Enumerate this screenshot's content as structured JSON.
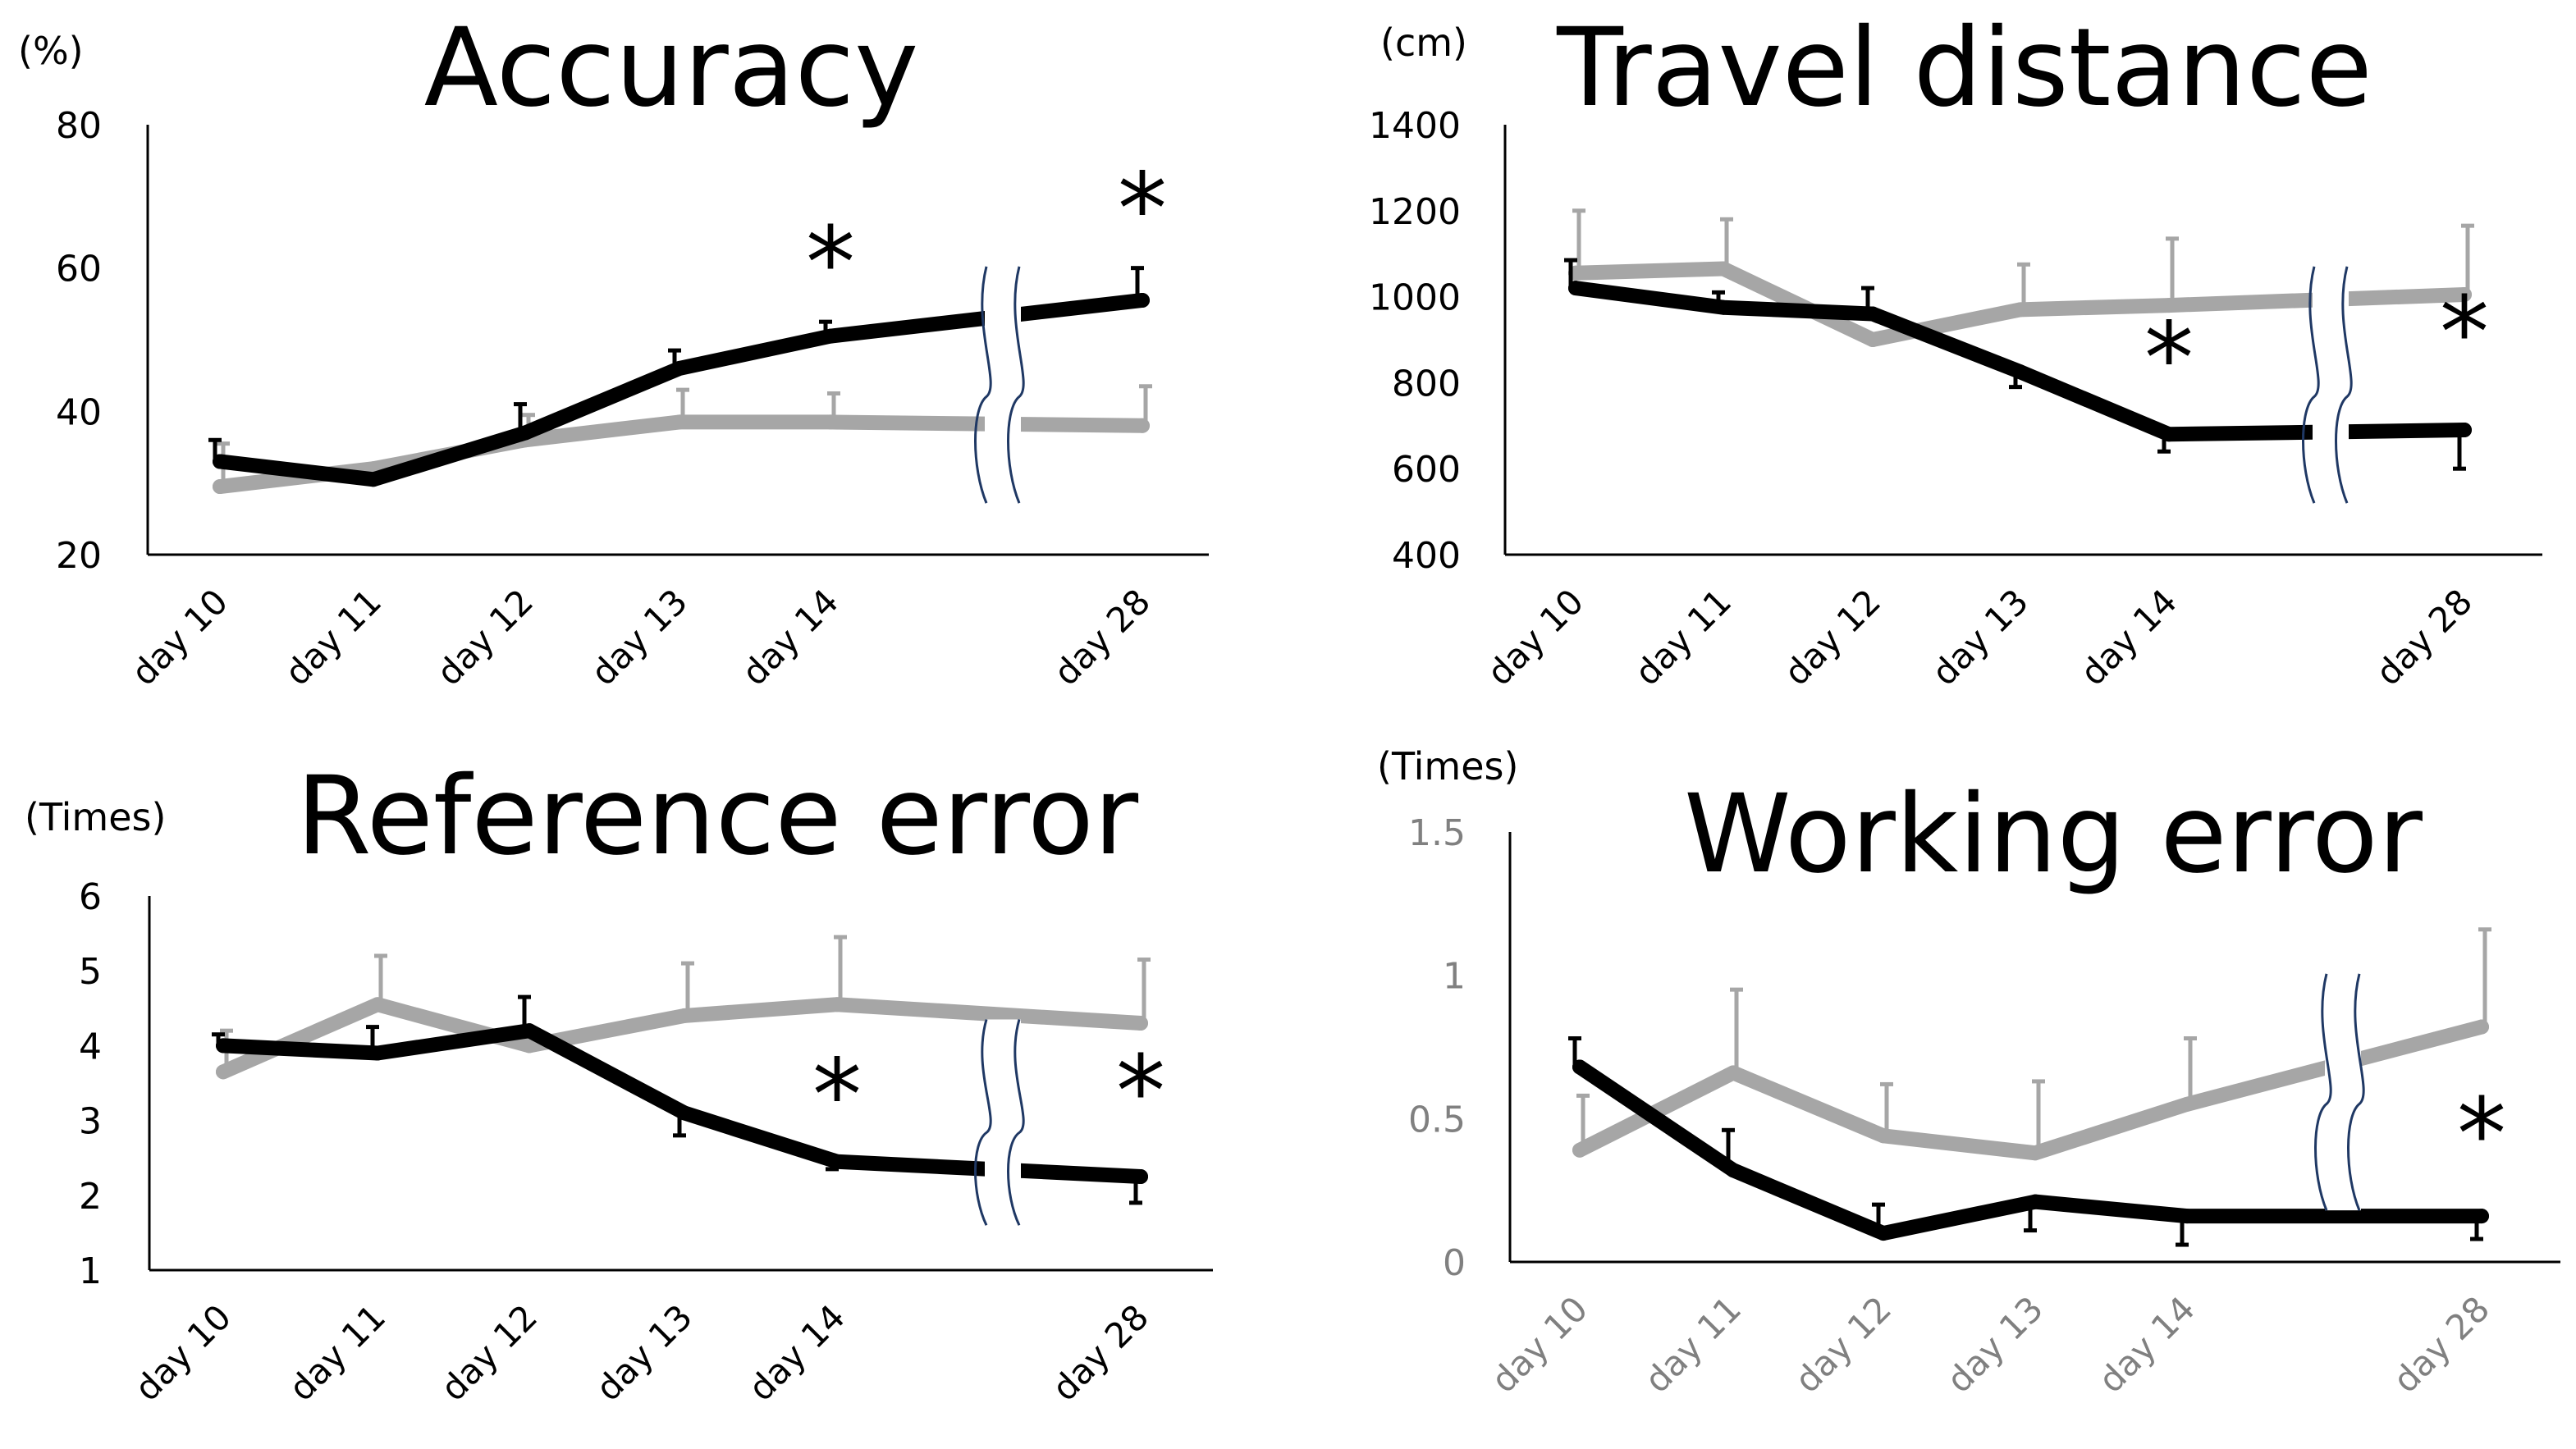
{
  "colors": {
    "series_dark": "#000000",
    "series_light": "#a6a6a6",
    "axis": "#000000",
    "break_mark": "#1f3864"
  },
  "chart_data": [
    {
      "type": "line",
      "title": "Accuracy",
      "unit": "(%)",
      "categories": [
        "day 10",
        "day 11",
        "day 12",
        "day 13",
        "day 14",
        "day 28"
      ],
      "yticks": [
        "20",
        "40",
        "60",
        "80"
      ],
      "ylim": [
        20,
        80
      ],
      "axis_break_between": [
        "day 14",
        "day 28"
      ],
      "series": [
        {
          "color": "#000000",
          "values": [
            33,
            30.5,
            37,
            46,
            50.5,
            55.5
          ],
          "errors": [
            3,
            0,
            4,
            2.5,
            2,
            4.5
          ]
        },
        {
          "color": "#a6a6a6",
          "values": [
            29.5,
            32,
            36,
            38.5,
            38.5,
            38
          ],
          "errors": [
            6,
            0,
            3.5,
            4.5,
            4,
            5.5
          ]
        }
      ],
      "significance": [
        {
          "category": "day 14",
          "label": "*"
        },
        {
          "category": "day 28",
          "label": "*"
        }
      ]
    },
    {
      "type": "line",
      "title": "Travel distance",
      "unit": "(cm)",
      "categories": [
        "day 10",
        "day 11",
        "day 12",
        "day 13",
        "day 14",
        "day 28"
      ],
      "yticks": [
        "400",
        "600",
        "800",
        "1000",
        "1200",
        "1400"
      ],
      "ylim": [
        400,
        1400
      ],
      "axis_break_between": [
        "day 14",
        "day 28"
      ],
      "series": [
        {
          "color": "#000000",
          "values": [
            1020,
            975,
            960,
            825,
            680,
            690
          ],
          "errors": [
            65,
            35,
            60,
            35,
            40,
            90
          ]
        },
        {
          "color": "#a6a6a6",
          "values": [
            1055,
            1065,
            900,
            970,
            980,
            1005
          ],
          "errors": [
            145,
            115,
            0,
            105,
            155,
            160
          ]
        }
      ],
      "significance": [
        {
          "category": "day 14",
          "label": "*"
        },
        {
          "category": "day 28",
          "label": "*"
        }
      ]
    },
    {
      "type": "line",
      "title": "Reference error",
      "unit": "(Times)",
      "categories": [
        "day 10",
        "day 11",
        "day 12",
        "day 13",
        "day 14",
        "day 28"
      ],
      "yticks": [
        "1",
        "2",
        "3",
        "4",
        "5",
        "6"
      ],
      "ylim": [
        1,
        6
      ],
      "axis_break_between": [
        "day 14",
        "day 28"
      ],
      "series": [
        {
          "color": "#000000",
          "values": [
            4,
            3.9,
            4.2,
            3.1,
            2.45,
            2.25
          ],
          "errors": [
            0.15,
            0.35,
            0.45,
            0.3,
            0.1,
            0.35
          ]
        },
        {
          "color": "#a6a6a6",
          "values": [
            3.65,
            4.55,
            4,
            4.4,
            4.55,
            4.3
          ],
          "errors": [
            0.55,
            0.65,
            0,
            0.7,
            0.9,
            0.85
          ]
        }
      ],
      "significance": [
        {
          "category": "day 14",
          "label": "*"
        },
        {
          "category": "day 28",
          "label": "*"
        }
      ]
    },
    {
      "type": "line",
      "title": "Working error",
      "unit": "(Times)",
      "categories": [
        "day 10",
        "day 11",
        "day 12",
        "day 13",
        "day 14",
        "day 28"
      ],
      "yticks": [
        "0",
        "0.5",
        "1",
        "1.5"
      ],
      "ylim": [
        0,
        1.5
      ],
      "axis_break_between": [
        "day 14",
        "day 28"
      ],
      "series": [
        {
          "color": "#000000",
          "values": [
            0.68,
            0.32,
            0.1,
            0.21,
            0.16,
            0.16
          ],
          "errors": [
            0.1,
            0.14,
            0.1,
            0.1,
            0.1,
            0.08
          ]
        },
        {
          "color": "#a6a6a6",
          "values": [
            0.39,
            0.66,
            0.44,
            0.38,
            0.55,
            0.82
          ],
          "errors": [
            0.19,
            0.29,
            0.18,
            0.25,
            0.23,
            0.34
          ]
        }
      ],
      "significance": [
        {
          "category": "day 28",
          "label": "*"
        }
      ]
    }
  ]
}
